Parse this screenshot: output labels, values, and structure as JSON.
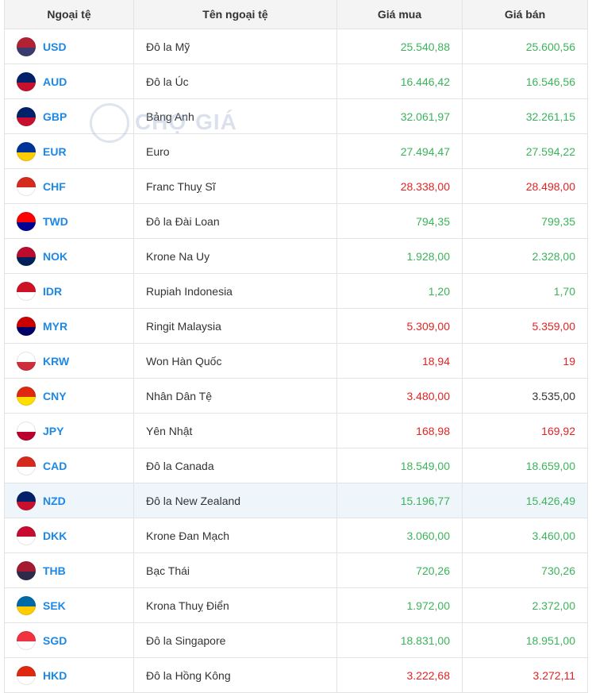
{
  "watermark": "CHỢ GIÁ",
  "table": {
    "headers": [
      "Ngoại tệ",
      "Tên ngoại tệ",
      "Giá mua",
      "Giá bán"
    ],
    "rows": [
      {
        "code": "USD",
        "name": "Đô la Mỹ",
        "buy": "25.540,88",
        "sell": "25.600,56",
        "buy_color": "#3cb35b",
        "sell_color": "#3cb35b"
      },
      {
        "code": "AUD",
        "name": "Đô la Úc",
        "buy": "16.446,42",
        "sell": "16.546,56",
        "buy_color": "#3cb35b",
        "sell_color": "#3cb35b"
      },
      {
        "code": "GBP",
        "name": "Bảng Anh",
        "buy": "32.061,97",
        "sell": "32.261,15",
        "buy_color": "#3cb35b",
        "sell_color": "#3cb35b"
      },
      {
        "code": "EUR",
        "name": "Euro",
        "buy": "27.494,47",
        "sell": "27.594,22",
        "buy_color": "#3cb35b",
        "sell_color": "#3cb35b"
      },
      {
        "code": "CHF",
        "name": "Franc Thuỵ Sĩ",
        "buy": "28.338,00",
        "sell": "28.498,00",
        "buy_color": "#e02424",
        "sell_color": "#e02424"
      },
      {
        "code": "TWD",
        "name": "Đô la Đài Loan",
        "buy": "794,35",
        "sell": "799,35",
        "buy_color": "#3cb35b",
        "sell_color": "#3cb35b"
      },
      {
        "code": "NOK",
        "name": "Krone Na Uy",
        "buy": "1.928,00",
        "sell": "2.328,00",
        "buy_color": "#3cb35b",
        "sell_color": "#3cb35b"
      },
      {
        "code": "IDR",
        "name": "Rupiah Indonesia",
        "buy": "1,20",
        "sell": "1,70",
        "buy_color": "#3cb35b",
        "sell_color": "#3cb35b"
      },
      {
        "code": "MYR",
        "name": "Ringit Malaysia",
        "buy": "5.309,00",
        "sell": "5.359,00",
        "buy_color": "#e02424",
        "sell_color": "#e02424"
      },
      {
        "code": "KRW",
        "name": "Won Hàn Quốc",
        "buy": "18,94",
        "sell": "19",
        "buy_color": "#e02424",
        "sell_color": "#e02424"
      },
      {
        "code": "CNY",
        "name": "Nhân Dân Tệ",
        "buy": "3.480,00",
        "sell": "3.535,00",
        "buy_color": "#e02424",
        "sell_color": "#333333"
      },
      {
        "code": "JPY",
        "name": "Yên Nhật",
        "buy": "168,98",
        "sell": "169,92",
        "buy_color": "#e02424",
        "sell_color": "#e02424"
      },
      {
        "code": "CAD",
        "name": "Đô la Canada",
        "buy": "18.549,00",
        "sell": "18.659,00",
        "buy_color": "#3cb35b",
        "sell_color": "#3cb35b"
      },
      {
        "code": "NZD",
        "name": "Đô la New Zealand",
        "buy": "15.196,77",
        "sell": "15.426,49",
        "buy_color": "#3cb35b",
        "sell_color": "#3cb35b"
      },
      {
        "code": "DKK",
        "name": "Krone Đan Mạch",
        "buy": "3.060,00",
        "sell": "3.460,00",
        "buy_color": "#3cb35b",
        "sell_color": "#3cb35b"
      },
      {
        "code": "THB",
        "name": "Bạc Thái",
        "buy": "720,26",
        "sell": "730,26",
        "buy_color": "#3cb35b",
        "sell_color": "#3cb35b"
      },
      {
        "code": "SEK",
        "name": "Krona Thuỵ Điển",
        "buy": "1.972,00",
        "sell": "2.372,00",
        "buy_color": "#3cb35b",
        "sell_color": "#3cb35b"
      },
      {
        "code": "SGD",
        "name": "Đô la Singapore",
        "buy": "18.831,00",
        "sell": "18.951,00",
        "buy_color": "#3cb35b",
        "sell_color": "#3cb35b"
      },
      {
        "code": "HKD",
        "name": "Đô la Hồng Kông",
        "buy": "3.222,68",
        "sell": "3.272,11",
        "buy_color": "#e02424",
        "sell_color": "#e02424"
      }
    ]
  }
}
